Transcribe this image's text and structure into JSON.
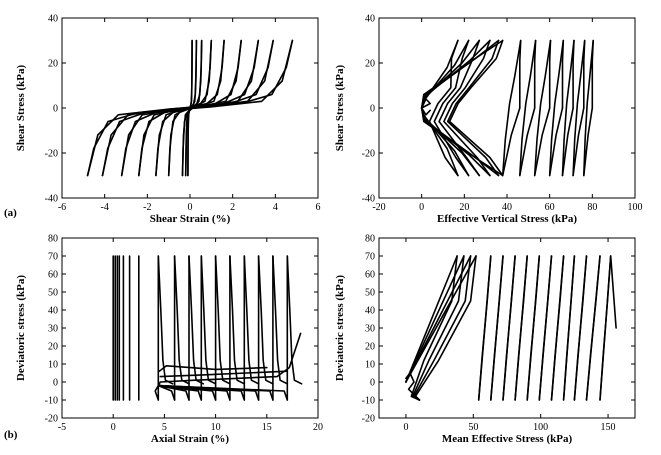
{
  "chart_data": [
    {
      "type": "line",
      "panel_label": "(a)",
      "xlabel": "Shear Strain (%)",
      "ylabel": "Shear Stress (kPa)",
      "xlim": [
        -6,
        6
      ],
      "ylim": [
        -40,
        40
      ],
      "xticks": [
        -6,
        -4,
        -2,
        0,
        2,
        4,
        6
      ],
      "yticks": [
        -40,
        -20,
        0,
        20,
        40
      ],
      "loops": [
        {
          "neg": -0.1,
          "pos": 0.1
        },
        {
          "neg": -0.2,
          "pos": 0.3
        },
        {
          "neg": -0.35,
          "pos": 0.55
        },
        {
          "neg": -1.0,
          "pos": 1.0
        },
        {
          "neg": -1.6,
          "pos": 1.6
        },
        {
          "neg": -2.4,
          "pos": 2.4
        },
        {
          "neg": -3.2,
          "pos": 3.2
        },
        {
          "neg": -4.1,
          "pos": 3.9
        },
        {
          "neg": -4.8,
          "pos": 4.8
        }
      ],
      "amplitude": 30
    },
    {
      "type": "line",
      "xlabel": "Effective Vertical Stress (kPa)",
      "ylabel": "Shear Stress (kPa)",
      "xlim": [
        -20,
        100
      ],
      "ylim": [
        -40,
        40
      ],
      "xticks": [
        -20,
        0,
        20,
        40,
        60,
        80,
        100
      ],
      "yticks": [
        -40,
        -20,
        0,
        20,
        40
      ],
      "wings": [
        17,
        22,
        27,
        32,
        36,
        38
      ],
      "cycles": [
        {
          "right": 80,
          "left": 76
        },
        {
          "right": 76,
          "left": 71
        },
        {
          "right": 71,
          "left": 66
        },
        {
          "right": 66,
          "left": 60
        },
        {
          "right": 60,
          "left": 53
        },
        {
          "right": 53,
          "left": 46
        },
        {
          "right": 46,
          "left": 38
        }
      ],
      "amplitude": 30
    },
    {
      "type": "line",
      "panel_label": "(b)",
      "xlabel": "Axial Strain (%)",
      "ylabel": "Deviatoric stress (kPa)",
      "xlim": [
        -5,
        20
      ],
      "ylim": [
        -20,
        80
      ],
      "xticks": [
        -5,
        0,
        5,
        10,
        15,
        20
      ],
      "yticks": [
        -20,
        -10,
        0,
        10,
        20,
        30,
        40,
        50,
        60,
        70,
        80
      ],
      "spikes": [
        0.0,
        0.2,
        0.4,
        0.6,
        1.0,
        1.6,
        2.5,
        4.4,
        6.0,
        7.4,
        8.6,
        10.0,
        11.4,
        12.8,
        14.2,
        15.6,
        17.0
      ],
      "amax": 70,
      "amin": -10
    },
    {
      "type": "line",
      "xlabel": "Mean Effective Stress (kPa)",
      "ylabel": "Deviatoric stress (kPa)",
      "xlim": [
        -20,
        170
      ],
      "ylim": [
        -20,
        80
      ],
      "xticks": [
        0,
        50,
        100,
        150
      ],
      "yticks": [
        -20,
        -10,
        0,
        10,
        20,
        30,
        40,
        50,
        60,
        70,
        80
      ],
      "peaks": [
        38,
        43,
        48,
        52
      ],
      "cycles": [
        {
          "right": 152,
          "left": 144
        },
        {
          "right": 144,
          "left": 134
        },
        {
          "right": 134,
          "left": 125
        },
        {
          "right": 125,
          "left": 117
        },
        {
          "right": 117,
          "left": 108
        },
        {
          "right": 108,
          "left": 99
        },
        {
          "right": 99,
          "left": 90
        },
        {
          "right": 90,
          "left": 81
        },
        {
          "right": 81,
          "left": 72
        },
        {
          "right": 72,
          "left": 63
        },
        {
          "right": 63,
          "left": 54
        }
      ],
      "amax": 70,
      "amin": -10
    }
  ]
}
